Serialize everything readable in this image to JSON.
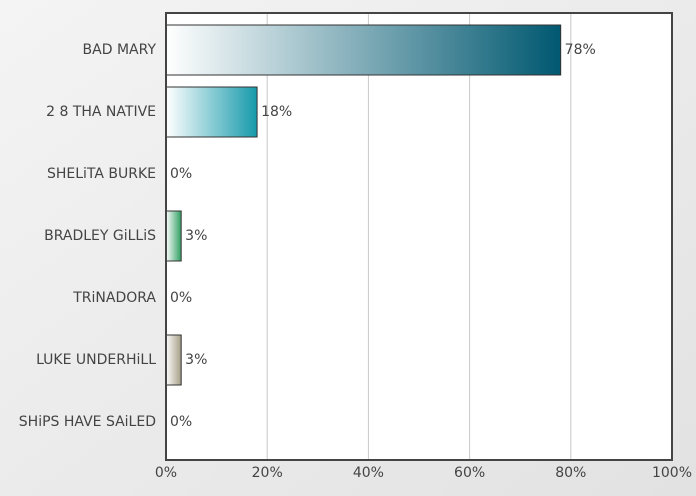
{
  "chart_data": {
    "type": "bar",
    "orientation": "horizontal",
    "categories": [
      "BAD MARY",
      "2 8 THA NATIVE",
      "SHELiTA BURKE",
      "BRADLEY GiLLiS",
      "TRiNADORA",
      "LUKE UNDERHiLL",
      "SHiPS HAVE SAiLED"
    ],
    "values": [
      78,
      18,
      0,
      3,
      0,
      3,
      0
    ],
    "value_labels": [
      "78%",
      "18%",
      "0%",
      "3%",
      "0%",
      "3%",
      "0%"
    ],
    "colors": [
      "#005870",
      "#169aab",
      "#7a5a9a",
      "#2e9e60",
      "#c07030",
      "#a49c84",
      "#5070a0"
    ],
    "xlim": [
      0,
      100
    ],
    "xticks": [
      {
        "value": 0,
        "label": "0%"
      },
      {
        "value": 20,
        "label": "20%"
      },
      {
        "value": 40,
        "label": "40%"
      },
      {
        "value": 60,
        "label": "60%"
      },
      {
        "value": 80,
        "label": "80%"
      },
      {
        "value": 100,
        "label": "100%"
      }
    ],
    "grid": true
  }
}
